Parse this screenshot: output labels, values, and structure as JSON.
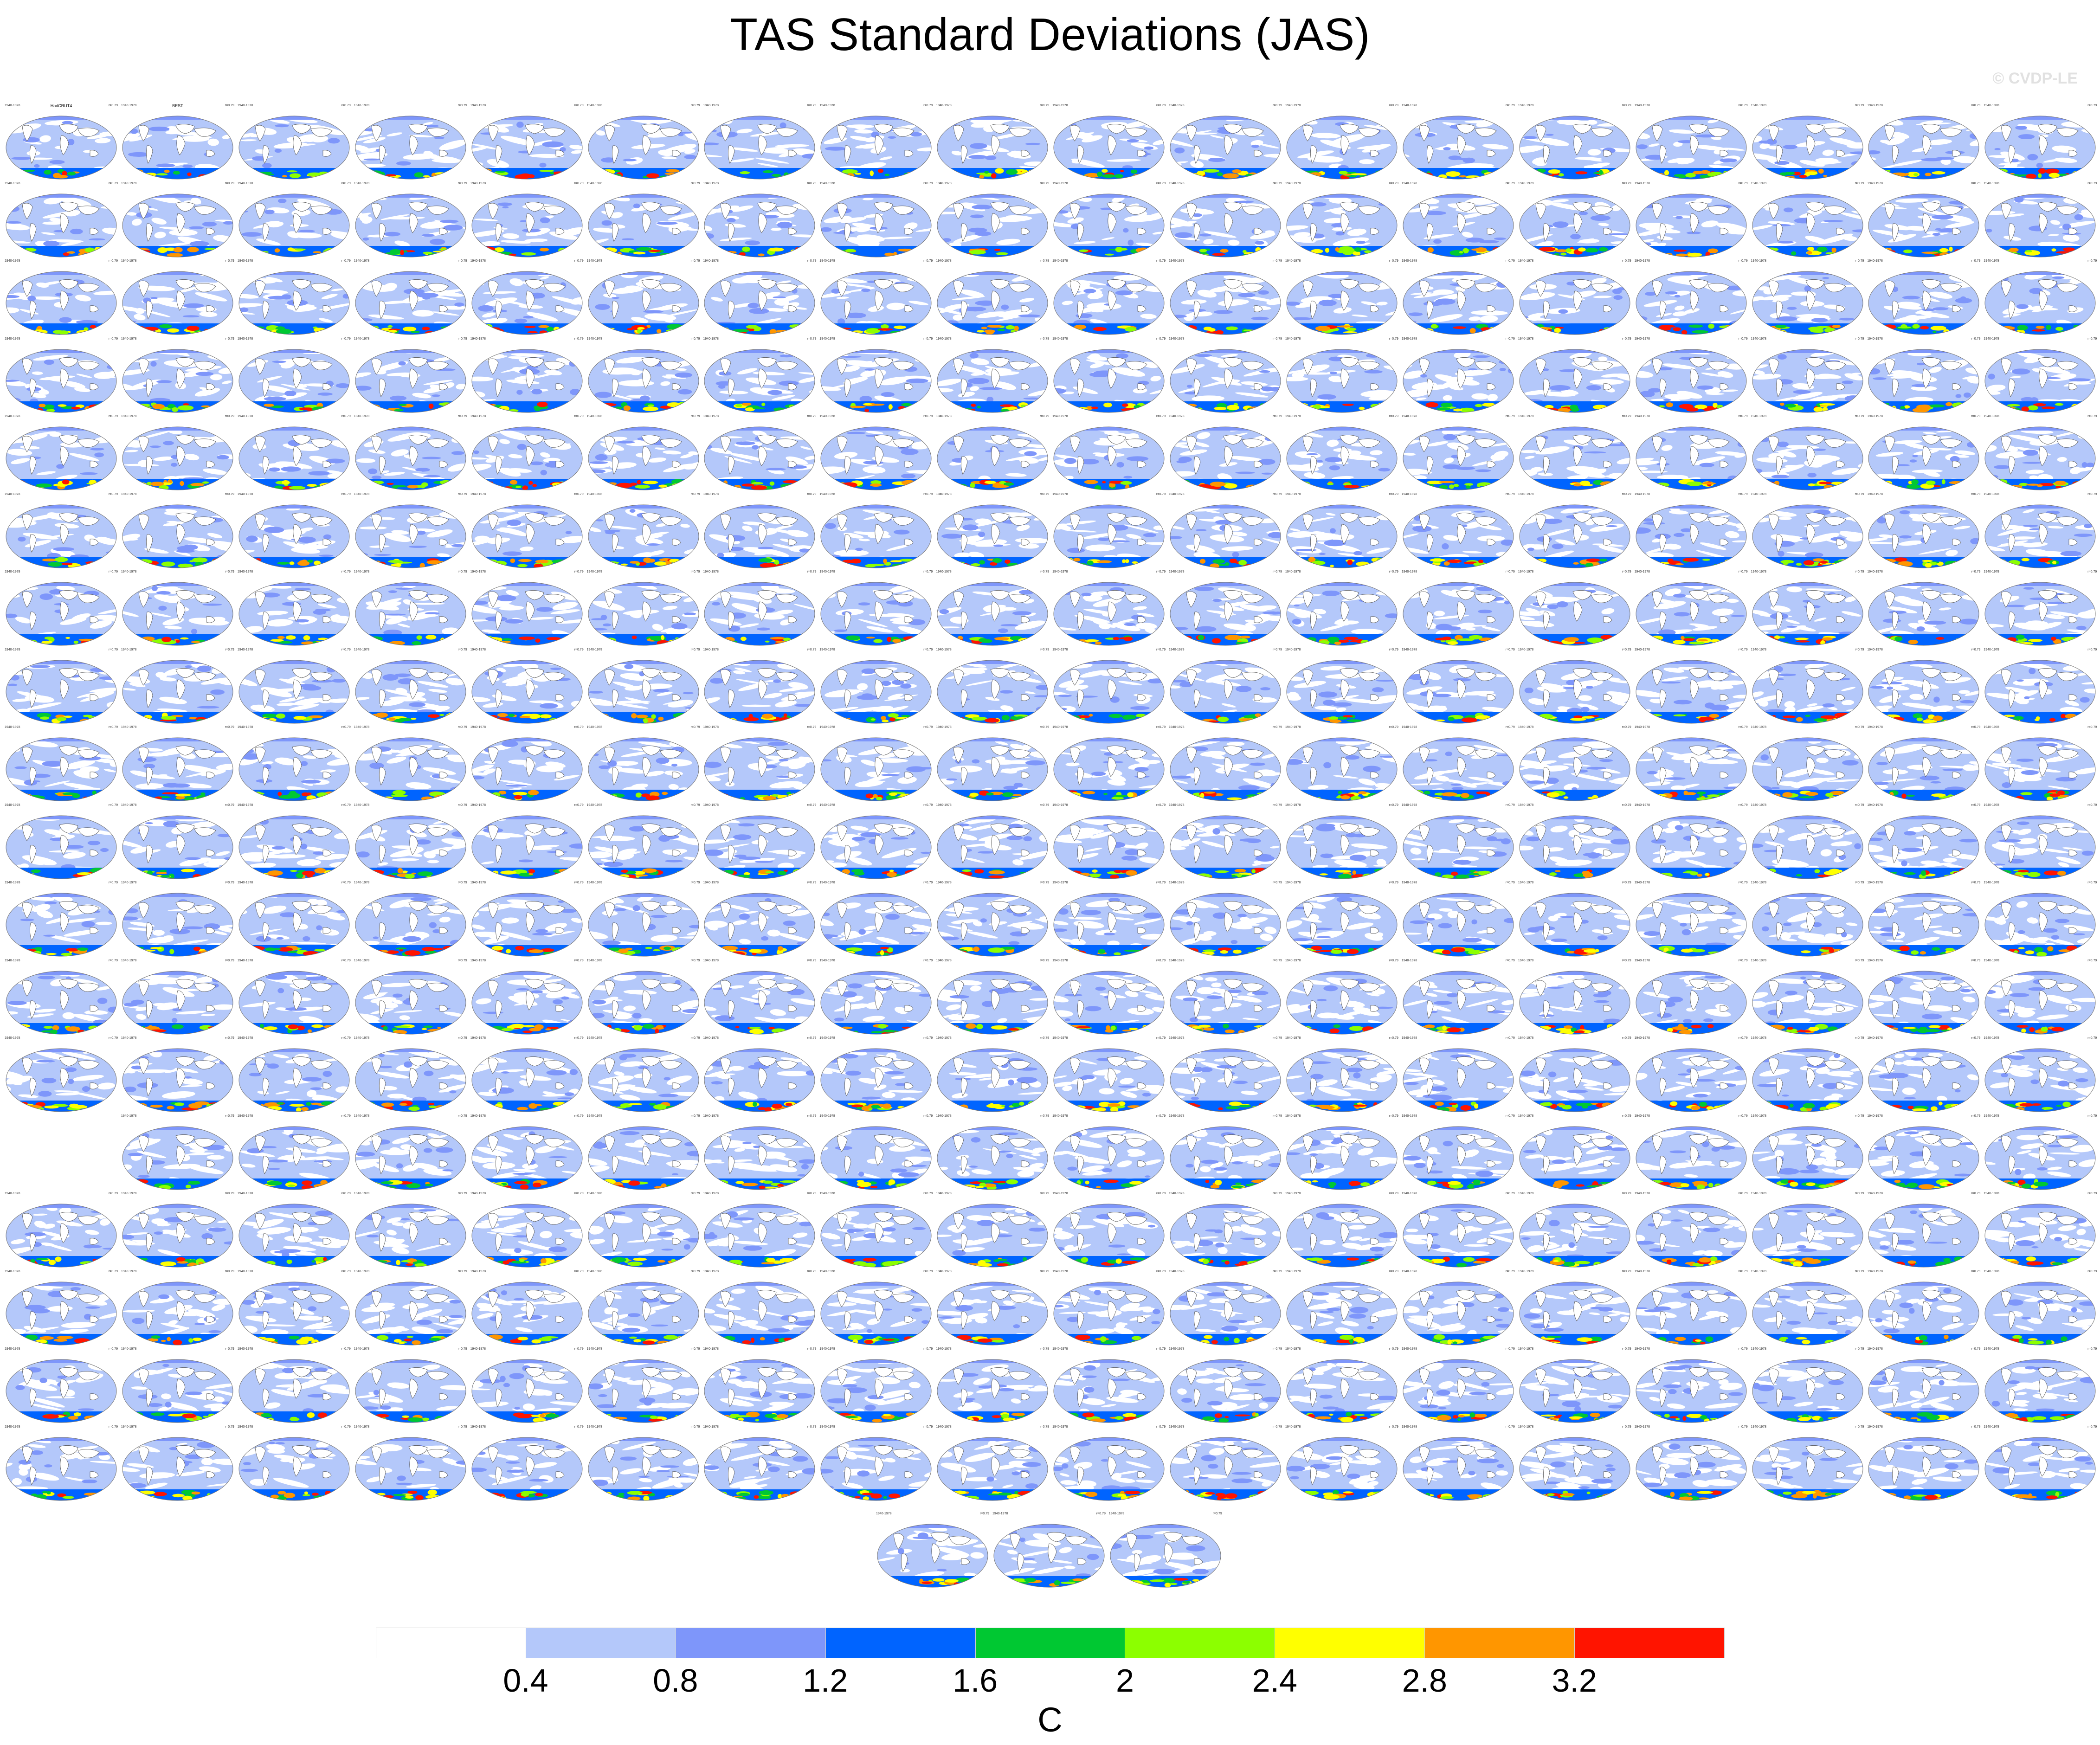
{
  "title": "TAS Standard Deviations (JAS)",
  "watermark": "© CVDP-LE",
  "colorbar": {
    "unit": "C",
    "tick_labels": [
      "0.4",
      "0.8",
      "1.2",
      "1.6",
      "2",
      "2.4",
      "2.8",
      "3.2"
    ],
    "colors": [
      "#ffffff",
      "#b4c8fa",
      "#7e96fa",
      "#0064ff",
      "#00c832",
      "#8cff00",
      "#ffff00",
      "#ff9600",
      "#ff1400"
    ]
  },
  "map_colors": {
    "ocean_light": "#b4c8fa",
    "ocean_mid": "#7e96fa",
    "land": "#ffffff",
    "coast": "#555555",
    "anomaly_colors": [
      "#0064ff",
      "#00c832",
      "#8cff00",
      "#ffff00",
      "#ff9600",
      "#ff1400"
    ]
  },
  "panel_header": {
    "left": "1940-1978",
    "right": "r=0.79"
  },
  "panel_titles": {
    "first": "HadCRUT4",
    "second": "BEST"
  },
  "layout": {
    "columns": 18,
    "rows": 18,
    "skipped_cells": [
      [
        13,
        0
      ]
    ],
    "extra_row_count": 3
  }
}
